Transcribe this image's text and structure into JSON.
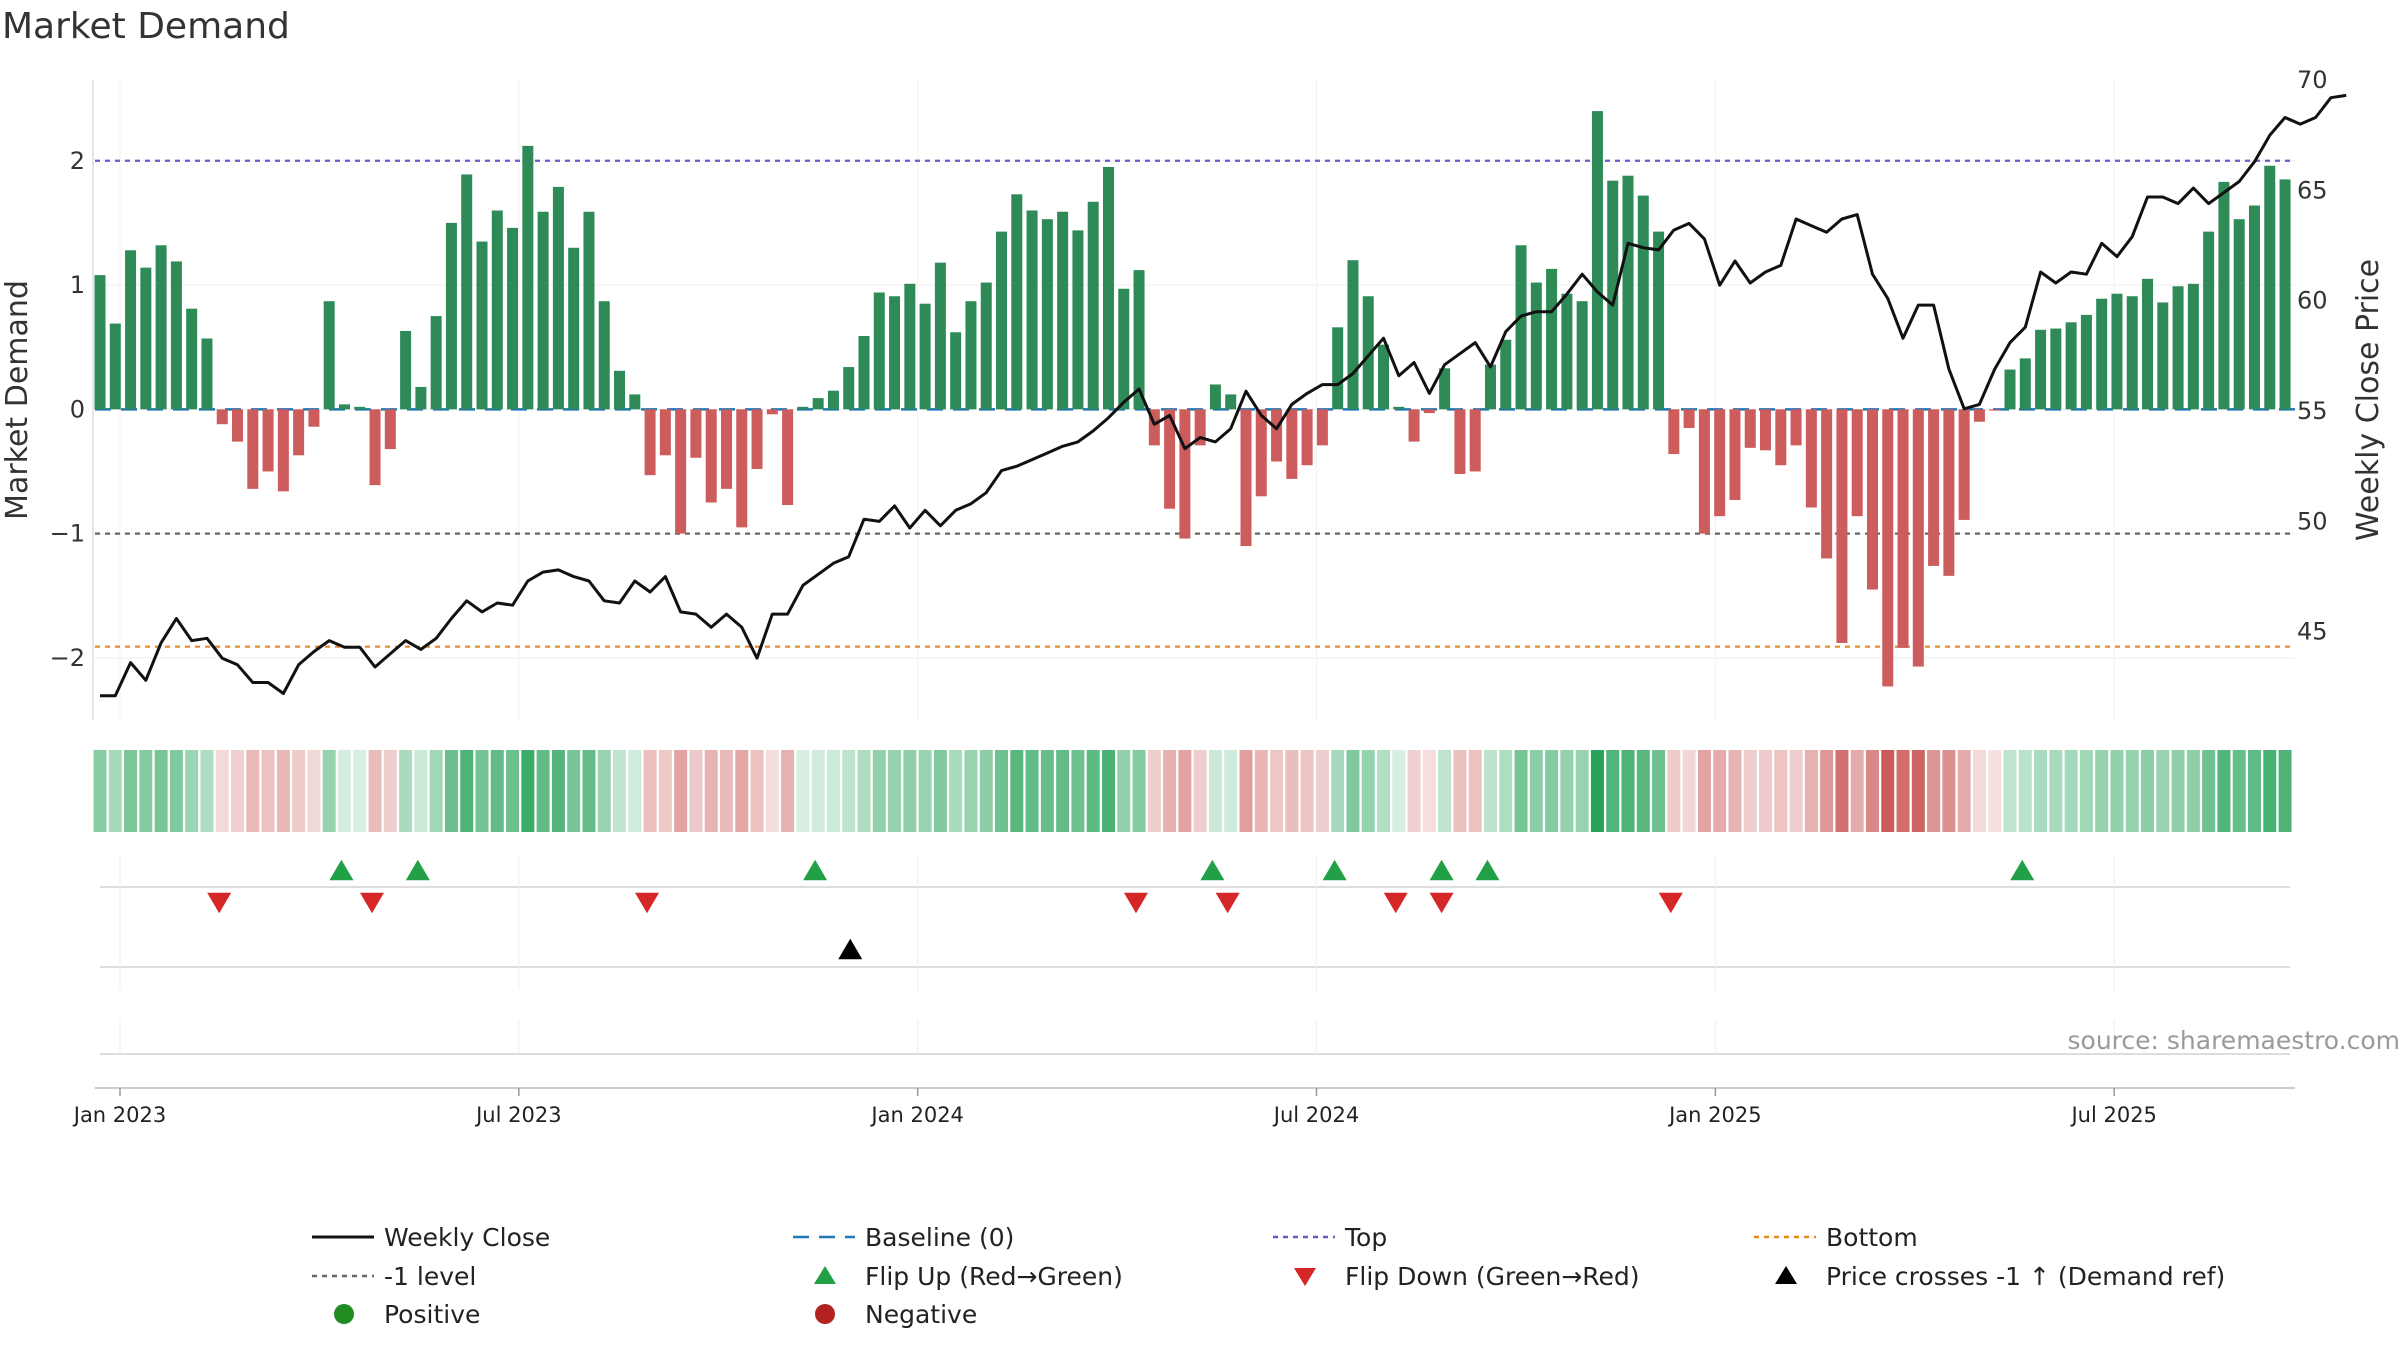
{
  "chart_data": {
    "type": "bar",
    "title": "Market Demand",
    "ylabel_left": "Market Demand",
    "ylabel_right": "Weekly Close Price",
    "source": "source: sharemaestro.com",
    "left_axis": {
      "range": [
        -2.5,
        2.65
      ],
      "ticks": [
        {
          "v": 2,
          "label": "2"
        },
        {
          "v": 1,
          "label": "1"
        },
        {
          "v": 0,
          "label": "0"
        },
        {
          "v": -1,
          "label": "−1"
        },
        {
          "v": -2,
          "label": "−2"
        }
      ]
    },
    "right_axis": {
      "range": [
        41,
        70
      ],
      "ticks": [
        {
          "v": 70,
          "label": "70"
        },
        {
          "v": 65,
          "label": "65"
        },
        {
          "v": 60,
          "label": "60"
        },
        {
          "v": 55,
          "label": "55"
        },
        {
          "v": 50,
          "label": "50"
        },
        {
          "v": 45,
          "label": "45"
        }
      ]
    },
    "x_ticks": [
      {
        "week": 0,
        "label": "Jan 2023"
      },
      {
        "week": 26,
        "label": "Jul 2023"
      },
      {
        "week": 52,
        "label": "Jan 2024"
      },
      {
        "week": 78,
        "label": "Jul 2024"
      },
      {
        "week": 104,
        "label": "Jan 2025"
      },
      {
        "week": 130,
        "label": "Jul 2025"
      }
    ],
    "reference_lines": {
      "top": 2.0,
      "minus_one": -1.0,
      "bottom": -1.91,
      "baseline": 0
    },
    "demand": [
      1.08,
      0.69,
      1.28,
      1.14,
      1.32,
      1.19,
      0.81,
      0.57,
      -0.12,
      -0.26,
      -0.64,
      -0.5,
      -0.66,
      -0.37,
      -0.14,
      0.87,
      0.04,
      0.02,
      -0.61,
      -0.32,
      0.63,
      0.18,
      0.75,
      1.5,
      1.89,
      1.35,
      1.6,
      1.46,
      2.12,
      1.59,
      1.79,
      1.3,
      1.59,
      0.87,
      0.31,
      0.12,
      -0.53,
      -0.37,
      -1.0,
      -0.39,
      -0.75,
      -0.64,
      -0.95,
      -0.48,
      -0.04,
      -0.77,
      0.02,
      0.09,
      0.15,
      0.34,
      0.59,
      0.94,
      0.91,
      1.01,
      0.85,
      1.18,
      0.62,
      0.87,
      1.02,
      1.43,
      1.73,
      1.6,
      1.53,
      1.59,
      1.44,
      1.67,
      1.95,
      0.97,
      1.12,
      -0.29,
      -0.8,
      -1.04,
      -0.29,
      0.2,
      0.12,
      -1.1,
      -0.7,
      -0.42,
      -0.56,
      -0.45,
      -0.29,
      0.66,
      1.2,
      0.91,
      0.52,
      0.02,
      -0.26,
      -0.03,
      0.33,
      -0.52,
      -0.5,
      0.36,
      0.56,
      1.32,
      1.02,
      1.13,
      0.93,
      0.87,
      2.4,
      1.84,
      1.88,
      1.72,
      1.43,
      -0.36,
      -0.15,
      -1.0,
      -0.86,
      -0.73,
      -0.31,
      -0.33,
      -0.45,
      -0.29,
      -0.79,
      -1.2,
      -1.88,
      -0.86,
      -1.45,
      -2.23,
      -1.92,
      -2.07,
      -1.26,
      -1.34,
      -0.89,
      -0.1,
      -0.01,
      0.32,
      0.41,
      0.64,
      0.65,
      0.7,
      0.76,
      0.89,
      0.93,
      0.91,
      1.05,
      0.86,
      0.99,
      1.01,
      1.43,
      1.83,
      1.53,
      1.64,
      1.96,
      1.85
    ],
    "close": [
      42.1,
      42.1,
      43.6,
      42.8,
      44.5,
      45.6,
      44.6,
      44.7,
      43.8,
      43.5,
      42.7,
      42.7,
      42.2,
      43.5,
      44.1,
      44.6,
      44.3,
      44.3,
      43.4,
      44.0,
      44.6,
      44.2,
      44.7,
      45.6,
      46.4,
      45.9,
      46.3,
      46.2,
      47.3,
      47.7,
      47.8,
      47.5,
      47.3,
      46.4,
      46.3,
      47.3,
      46.8,
      47.5,
      45.9,
      45.8,
      45.2,
      45.8,
      45.2,
      43.8,
      45.8,
      45.8,
      47.1,
      47.6,
      48.1,
      48.4,
      50.1,
      50.0,
      50.7,
      49.7,
      50.5,
      49.8,
      50.5,
      50.8,
      51.3,
      52.3,
      52.5,
      52.8,
      53.1,
      53.4,
      53.6,
      54.1,
      54.7,
      55.4,
      56.0,
      54.4,
      54.8,
      53.3,
      53.8,
      53.6,
      54.2,
      55.9,
      54.8,
      54.2,
      55.3,
      55.8,
      56.2,
      56.2,
      56.7,
      57.5,
      58.3,
      56.6,
      57.2,
      55.8,
      57.1,
      57.6,
      58.1,
      57.0,
      58.6,
      59.3,
      59.5,
      59.5,
      60.3,
      61.2,
      60.4,
      59.8,
      62.6,
      62.4,
      62.3,
      63.2,
      63.5,
      62.8,
      60.7,
      61.8,
      60.8,
      61.3,
      61.6,
      63.7,
      63.4,
      63.1,
      63.7,
      63.9,
      61.2,
      60.1,
      58.3,
      59.8,
      59.8,
      56.9,
      55.1,
      55.3,
      56.9,
      58.1,
      58.8,
      61.3,
      60.8,
      61.3,
      61.2,
      62.6,
      62.0,
      62.9,
      64.7,
      64.7,
      64.4,
      65.1,
      64.4,
      64.9,
      65.4,
      66.3,
      67.5,
      68.3,
      68.0,
      68.3,
      69.2,
      69.3
    ],
    "markers": {
      "flip_up": [
        15,
        20,
        46,
        72,
        80,
        87,
        90,
        125
      ],
      "flip_down": [
        7,
        17,
        35,
        67,
        73,
        84,
        87,
        102
      ],
      "price_cross": [
        48
      ]
    },
    "legend": [
      {
        "key": "weekly_close",
        "label": "Weekly Close"
      },
      {
        "key": "baseline",
        "label": "Baseline (0)"
      },
      {
        "key": "top",
        "label": "Top"
      },
      {
        "key": "bottom",
        "label": "Bottom"
      },
      {
        "key": "minus_one",
        "label": "-1 level"
      },
      {
        "key": "flip_up",
        "label": "Flip Up (Red→Green)"
      },
      {
        "key": "flip_down",
        "label": "Flip Down (Green→Red)"
      },
      {
        "key": "price_cross",
        "label": "Price crosses -1 ↑ (Demand ref)"
      },
      {
        "key": "positive",
        "label": "Positive"
      },
      {
        "key": "negative",
        "label": "Negative"
      }
    ],
    "colors": {
      "positive": "#2e8b57",
      "negative": "#cd5c5c",
      "close": "#111111",
      "top": "#6a5acd",
      "minus_one": "#666666",
      "bottom": "#e8891e",
      "baseline": "#1f77b4",
      "flip_up": "#22a046",
      "flip_down": "#d62728",
      "price_cross": "#000000",
      "positive_dot": "#228b22",
      "negative_dot": "#b22222"
    }
  }
}
